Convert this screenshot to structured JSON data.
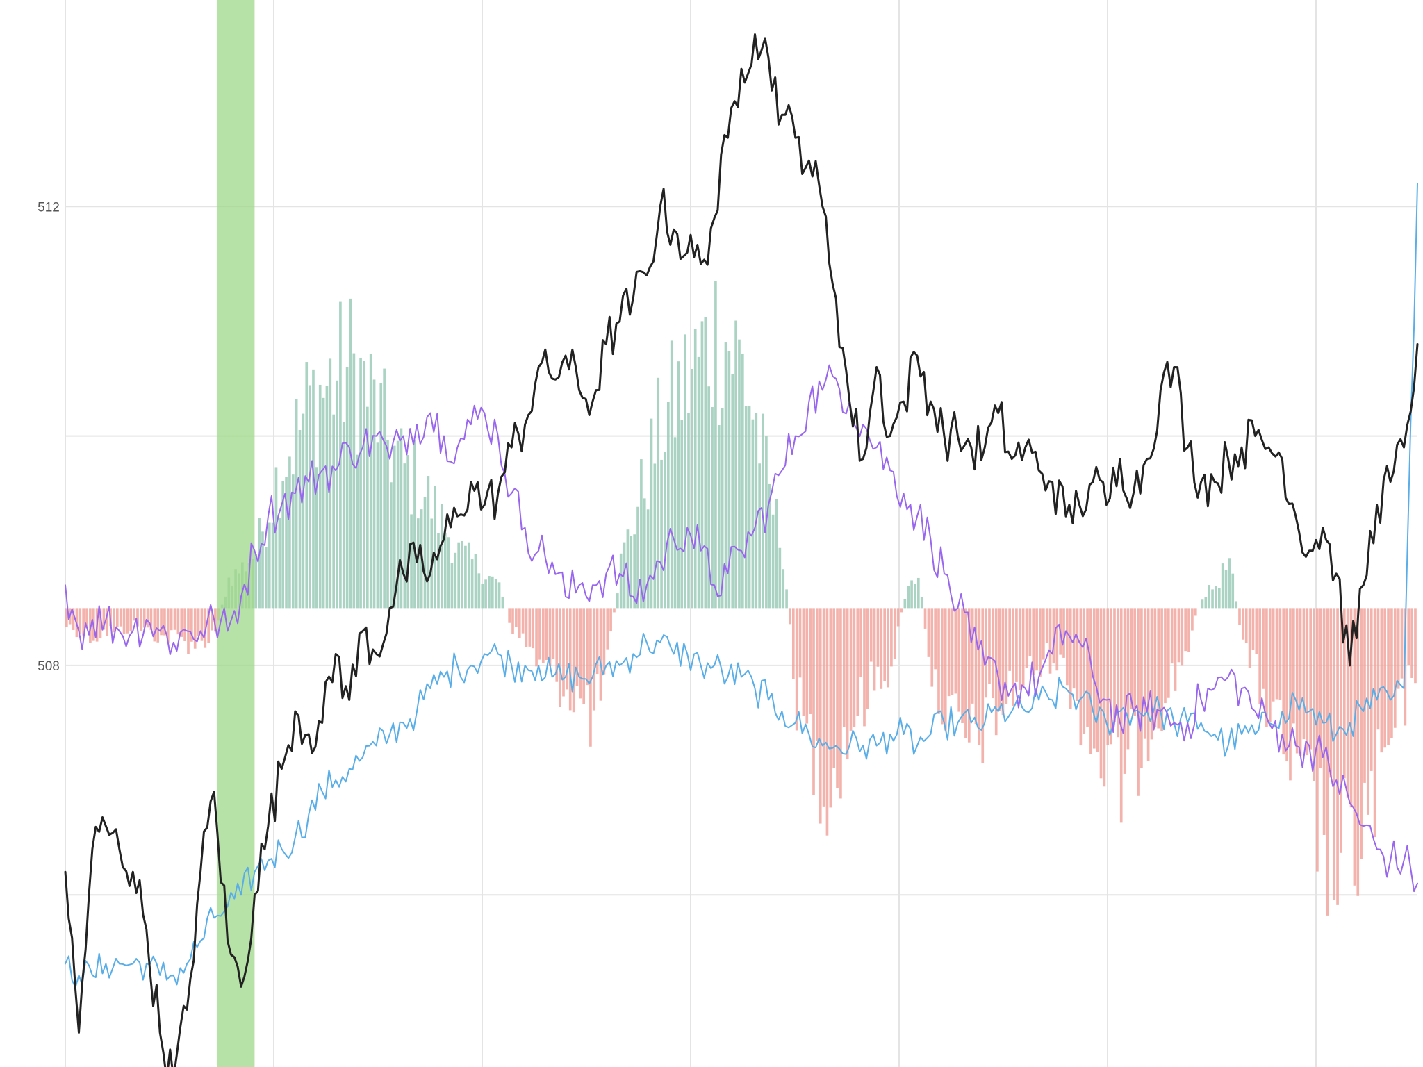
{
  "chart_data": {
    "type": "line",
    "title": "",
    "xlabel": "",
    "ylabel": "",
    "ylim": [
      504.5,
      513.8
    ],
    "y_ticks": [
      {
        "value": 512,
        "label": "512"
      },
      {
        "value": 508,
        "label": "508"
      }
    ],
    "y_gridlines": [
      512,
      510,
      508,
      506
    ],
    "x_gridline_count": 7,
    "grid": true,
    "legend": "none",
    "colors": {
      "price": "#222222",
      "slow": "#5aaee8",
      "fast": "#9966ee",
      "hist_pos": "#9ccbb8",
      "hist_neg": "#f1a49c",
      "highlight": "#9fd88a",
      "grid": "#e4e4e4"
    },
    "highlight_x": [
      11.2,
      14.0
    ],
    "n_points": 101,
    "series": [
      {
        "key": "price",
        "values": [
          506.2,
          504.8,
          506.4,
          506.6,
          506.4,
          506.2,
          505.7,
          504.8,
          504.4,
          505.0,
          506.2,
          506.9,
          505.6,
          505.2,
          506.0,
          506.6,
          507.1,
          507.6,
          507.4,
          507.5,
          508.1,
          507.7,
          508.3,
          508.1,
          508.5,
          508.8,
          508.9,
          508.8,
          509.1,
          509.3,
          509.6,
          509.4,
          509.5,
          509.9,
          510.1,
          510.6,
          510.5,
          510.7,
          510.4,
          510.3,
          510.8,
          511.0,
          511.2,
          511.4,
          512.0,
          511.8,
          511.6,
          511.5,
          511.9,
          512.6,
          513.2,
          513.5,
          513.3,
          512.8,
          512.6,
          512.4,
          512.0,
          511.2,
          510.3,
          509.8,
          510.6,
          510.0,
          510.3,
          510.7,
          510.3,
          510.0,
          510.0,
          509.9,
          509.9,
          510.2,
          509.8,
          509.9,
          509.7,
          509.6,
          509.3,
          509.4,
          509.6,
          509.4,
          509.8,
          509.5,
          509.8,
          510.4,
          510.6,
          509.9,
          509.6,
          509.6,
          509.8,
          509.9,
          510.0,
          509.9,
          509.8,
          509.3,
          509.0,
          509.2,
          508.8,
          508.0,
          508.7,
          509.4,
          509.6,
          509.9,
          510.8
        ],
        "smooth": 0.22,
        "stroke": 3
      },
      {
        "key": "slow",
        "values": [
          505.4,
          505.3,
          505.3,
          505.4,
          505.4,
          505.4,
          505.4,
          505.3,
          505.3,
          505.4,
          505.6,
          505.8,
          505.9,
          506.0,
          506.2,
          506.3,
          506.4,
          506.5,
          506.7,
          506.9,
          507.0,
          507.1,
          507.2,
          507.3,
          507.4,
          507.5,
          507.6,
          507.8,
          507.9,
          508.0,
          508.0,
          508.1,
          508.1,
          508.0,
          508.0,
          508.0,
          507.9,
          507.9,
          507.9,
          507.9,
          508.0,
          508.0,
          508.1,
          508.2,
          508.2,
          508.1,
          508.1,
          508.0,
          508.0,
          507.9,
          507.9,
          507.8,
          507.7,
          507.6,
          507.5,
          507.4,
          507.3,
          507.3,
          507.3,
          507.3,
          507.3,
          507.4,
          507.4,
          507.3,
          507.4,
          507.5,
          507.5,
          507.5,
          507.5,
          507.6,
          507.6,
          507.6,
          507.7,
          507.7,
          507.8,
          507.7,
          507.6,
          507.5,
          507.6,
          507.6,
          507.6,
          507.6,
          507.5,
          507.5,
          507.5,
          507.4,
          507.3,
          507.4,
          507.4,
          507.5,
          507.6,
          507.7,
          507.6,
          507.5,
          507.4,
          507.5,
          507.6,
          507.7,
          507.7,
          507.8,
          512.2
        ],
        "smooth": 0.15,
        "stroke": 2
      },
      {
        "key": "fast",
        "values": [
          508.7,
          508.3,
          508.4,
          508.4,
          508.3,
          508.3,
          508.4,
          508.3,
          508.2,
          508.3,
          508.3,
          508.4,
          508.3,
          508.6,
          509.0,
          509.3,
          509.4,
          509.5,
          509.6,
          509.7,
          509.7,
          509.9,
          509.9,
          510.0,
          509.8,
          510.0,
          510.1,
          510.2,
          510.0,
          509.9,
          510.1,
          510.2,
          510.0,
          509.5,
          509.2,
          509.0,
          508.9,
          508.6,
          508.7,
          508.7,
          508.8,
          508.8,
          508.6,
          508.7,
          508.9,
          509.1,
          509.2,
          509.0,
          508.7,
          508.8,
          509.0,
          509.2,
          509.4,
          509.7,
          510.0,
          510.3,
          510.4,
          510.5,
          510.3,
          510.1,
          509.9,
          509.7,
          509.5,
          509.3,
          509.1,
          508.8,
          508.5,
          508.2,
          508.0,
          507.9,
          507.8,
          507.8,
          507.9,
          508.1,
          508.3,
          508.2,
          507.9,
          507.7,
          507.5,
          507.6,
          507.6,
          507.6,
          507.5,
          507.5,
          507.7,
          507.8,
          507.9,
          507.8,
          507.6,
          507.5,
          507.4,
          507.3,
          507.3,
          507.2,
          507.0,
          506.8,
          506.6,
          506.4,
          506.3,
          506.3,
          506.1
        ],
        "smooth": 0.2,
        "stroke": 2
      }
    ],
    "histogram": {
      "baseline": 508.5,
      "values": [
        -0.15,
        -0.2,
        -0.25,
        -0.2,
        -0.2,
        -0.15,
        -0.2,
        -0.25,
        -0.25,
        -0.3,
        -0.3,
        -0.2,
        0.25,
        0.35,
        0.5,
        0.9,
        1.3,
        1.5,
        1.8,
        1.9,
        2.0,
        2.1,
        1.95,
        1.7,
        1.4,
        1.2,
        1.1,
        0.9,
        0.7,
        0.5,
        0.4,
        0.3,
        0.2,
        -0.2,
        -0.3,
        -0.5,
        -0.6,
        -0.7,
        -0.8,
        -1.0,
        -0.5,
        0.4,
        0.8,
        1.2,
        1.6,
        1.8,
        2.0,
        2.2,
        2.4,
        2.3,
        2.1,
        1.6,
        1.0,
        0.5,
        -0.8,
        -1.2,
        -1.5,
        -1.4,
        -1.0,
        -0.8,
        -0.6,
        -0.5,
        0.1,
        0.3,
        -0.6,
        -0.9,
        -1.1,
        -1.2,
        -1.0,
        -0.9,
        -0.7,
        -0.6,
        -0.5,
        -0.4,
        -0.6,
        -0.9,
        -1.2,
        -1.4,
        -1.5,
        -1.3,
        -1.0,
        -0.8,
        -0.6,
        -0.3,
        0.1,
        0.2,
        0.4,
        -0.3,
        -0.6,
        -0.9,
        -1.2,
        -1.5,
        -1.7,
        -2.0,
        -2.3,
        -2.2,
        -1.9,
        -1.6,
        -1.2,
        -0.8,
        -0.4
      ],
      "jitter": 0.35
    }
  }
}
